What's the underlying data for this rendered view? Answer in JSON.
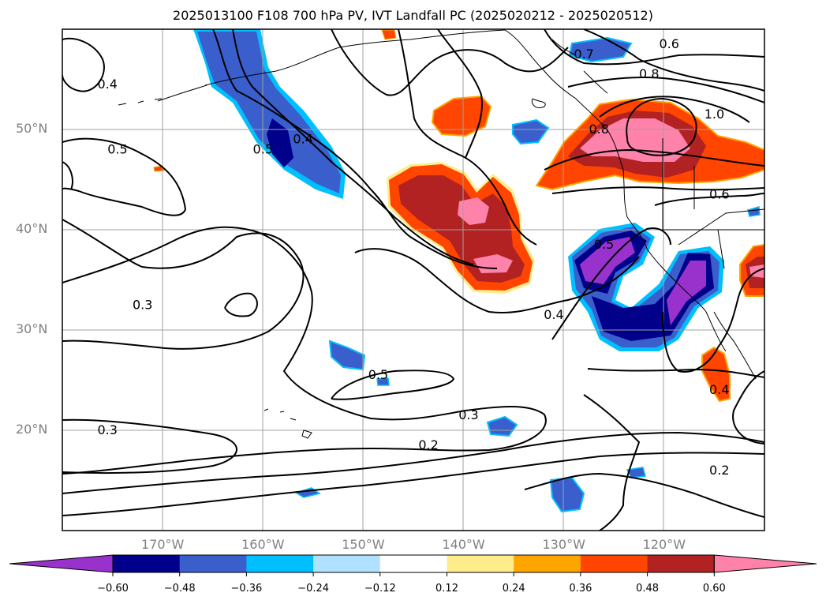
{
  "title": "2025013100 F108 700 hPa PV, IVT Landfall PC (2025020212 - 2025020512)",
  "lat_labels": [
    {
      "text": "50°N",
      "lat": 50
    },
    {
      "text": "40°N",
      "lat": 40
    },
    {
      "text": "30°N",
      "lat": 30
    },
    {
      "text": "20°N",
      "lat": 20
    }
  ],
  "lon_labels": [
    {
      "text": "170°W",
      "lon": -170
    },
    {
      "text": "160°W",
      "lon": -160
    },
    {
      "text": "150°W",
      "lon": -150
    },
    {
      "text": "140°W",
      "lon": -140
    },
    {
      "text": "130°W",
      "lon": -130
    },
    {
      "text": "120°W",
      "lon": -120
    }
  ],
  "extent": {
    "lon_min": -180,
    "lon_max": -110,
    "lat_min": 10,
    "lat_max": 60
  },
  "contour_labels": [
    {
      "text": "0.4",
      "lon": -175.5,
      "lat": 54.5
    },
    {
      "text": "0.5",
      "lon": -174.5,
      "lat": 48.0
    },
    {
      "text": "0.5",
      "lon": -160.0,
      "lat": 48.0
    },
    {
      "text": "0.4",
      "lon": -156.0,
      "lat": 49.0
    },
    {
      "text": "0.3",
      "lon": -172.0,
      "lat": 32.5
    },
    {
      "text": "0.3",
      "lon": -175.5,
      "lat": 20.0
    },
    {
      "text": "0.5",
      "lon": -148.5,
      "lat": 25.5
    },
    {
      "text": "0.3",
      "lon": -139.5,
      "lat": 21.5
    },
    {
      "text": "0.2",
      "lon": -143.5,
      "lat": 18.5
    },
    {
      "text": "0.4",
      "lon": -131.0,
      "lat": 31.5
    },
    {
      "text": "0.5",
      "lon": -126.0,
      "lat": 38.5
    },
    {
      "text": "0.7",
      "lon": -128.0,
      "lat": 57.5
    },
    {
      "text": "0.6",
      "lon": -119.5,
      "lat": 58.5
    },
    {
      "text": "0.8",
      "lon": -121.5,
      "lat": 55.5
    },
    {
      "text": "1.0",
      "lon": -115.0,
      "lat": 51.5
    },
    {
      "text": "0.8",
      "lon": -126.5,
      "lat": 50.0
    },
    {
      "text": "0.6",
      "lon": -114.5,
      "lat": 43.5
    },
    {
      "text": "0.4",
      "lon": -114.5,
      "lat": 24.0
    },
    {
      "text": "0.2",
      "lon": -114.5,
      "lat": 16.0
    }
  ],
  "colorbar": {
    "colors": [
      "#9932CC",
      "#00008B",
      "#3A5FCD",
      "#00BFFF",
      "#B0E2FF",
      "#FFFFFF",
      "#FFEC8B",
      "#FFA500",
      "#FF4500",
      "#B22222",
      "#FF82AB"
    ],
    "tick_labels": [
      "−0.60",
      "−0.48",
      "−0.36",
      "−0.24",
      "−0.12",
      "0.12",
      "0.24",
      "0.36",
      "0.48",
      "0.60"
    ]
  }
}
